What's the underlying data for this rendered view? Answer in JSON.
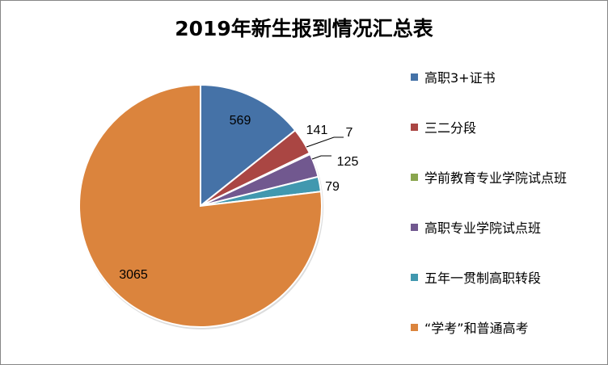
{
  "chart_data": {
    "type": "pie",
    "title": "2019年新生报到情况汇总表",
    "categories": [
      "高职3+证书",
      "三二分段",
      "学前教育专业学院试点班",
      "高职专业学院试点班",
      "五年一贯制高职转段",
      "“学考”和普通高考"
    ],
    "values": [
      569,
      141,
      7,
      125,
      79,
      3065
    ],
    "data_labels": [
      "569",
      "141",
      "7",
      "125",
      "79",
      "3065"
    ],
    "colors": [
      "#4572A7",
      "#AA4643",
      "#89A54E",
      "#71588F",
      "#4198AF",
      "#DB843D"
    ],
    "start_angle": "12 o'clock",
    "direction": "clockwise",
    "legend_position": "right"
  }
}
